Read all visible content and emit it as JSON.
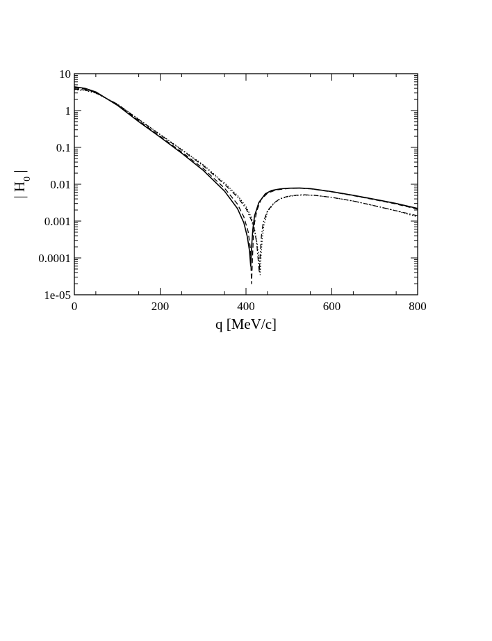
{
  "chart_data": {
    "type": "line",
    "title": "",
    "xlabel": "q [MeV/c]",
    "ylabel": "| H",
    "ylabel_subscript": "0",
    "ylabel_suffix": " |",
    "xlim": [
      0,
      800
    ],
    "ylim": [
      1e-05,
      10
    ],
    "yscale": "log",
    "grid": false,
    "legend": "none",
    "x_ticks": [
      0,
      200,
      400,
      600,
      800
    ],
    "x_tick_labels": [
      "0",
      "200",
      "400",
      "600",
      "800"
    ],
    "y_ticks": [
      1e-05,
      0.0001,
      0.001,
      0.01,
      0.1,
      1,
      10
    ],
    "y_tick_labels": [
      "1e-05",
      "0.0001",
      "0.001",
      "0.01",
      "0.1",
      "1",
      "10"
    ],
    "series": [
      {
        "style": "solid",
        "color": "#000000",
        "x": [
          0,
          25,
          50,
          100,
          150,
          200,
          250,
          300,
          350,
          380,
          395,
          403,
          408,
          411,
          413,
          416,
          420,
          430,
          445,
          460,
          480,
          500,
          525,
          550,
          600,
          650,
          700,
          750,
          800
        ],
        "y": [
          4.4,
          4.0,
          3.2,
          1.4,
          0.5,
          0.19,
          0.07,
          0.024,
          0.0065,
          0.0022,
          0.0009,
          0.00038,
          0.00016,
          6e-05,
          0.0002,
          0.0006,
          0.0014,
          0.0032,
          0.0055,
          0.0068,
          0.0075,
          0.0078,
          0.0079,
          0.0076,
          0.0063,
          0.005,
          0.0039,
          0.003,
          0.0022
        ]
      },
      {
        "style": "dashed",
        "color": "#000000",
        "x": [
          0,
          25,
          50,
          100,
          150,
          200,
          250,
          300,
          350,
          380,
          395,
          405,
          410,
          413,
          415,
          417,
          420,
          425,
          435,
          450,
          470,
          500,
          525,
          550,
          600,
          650,
          700,
          750,
          800
        ],
        "y": [
          4.1,
          3.8,
          3.1,
          1.45,
          0.53,
          0.2,
          0.075,
          0.027,
          0.0078,
          0.0029,
          0.0013,
          0.00052,
          0.00019,
          2e-05,
          9e-05,
          0.00035,
          0.0009,
          0.0019,
          0.0038,
          0.0057,
          0.007,
          0.0077,
          0.0078,
          0.0075,
          0.0062,
          0.0049,
          0.0038,
          0.0029,
          0.0021
        ]
      },
      {
        "style": "dash-dot",
        "color": "#000000",
        "x": [
          0,
          25,
          50,
          100,
          150,
          200,
          250,
          300,
          350,
          380,
          400,
          412,
          420,
          425,
          428,
          431,
          433,
          436,
          440,
          450,
          465,
          480,
          500,
          530,
          560,
          600,
          650,
          700,
          750,
          800
        ],
        "y": [
          3.8,
          3.6,
          3.0,
          1.5,
          0.57,
          0.22,
          0.085,
          0.032,
          0.01,
          0.0045,
          0.0022,
          0.0011,
          0.00055,
          0.00025,
          0.0001,
          4e-05,
          0.00012,
          0.0004,
          0.0009,
          0.0019,
          0.0031,
          0.0041,
          0.0048,
          0.0052,
          0.005,
          0.0044,
          0.0035,
          0.0026,
          0.0019,
          0.0014
        ]
      },
      {
        "style": "dotted",
        "color": "#000000",
        "x": [
          0,
          25,
          50,
          100,
          150,
          200,
          250,
          300,
          350,
          380,
          400,
          412,
          420,
          426,
          430,
          433,
          435,
          438,
          442,
          450,
          465,
          480,
          500,
          530,
          560,
          600,
          650,
          700,
          750,
          800
        ],
        "y": [
          3.7,
          3.5,
          2.95,
          1.5,
          0.58,
          0.225,
          0.088,
          0.034,
          0.0108,
          0.005,
          0.0025,
          0.0013,
          0.0006,
          0.00024,
          0.0001,
          3.5e-05,
          0.00011,
          0.00035,
          0.0008,
          0.0018,
          0.003,
          0.004,
          0.0047,
          0.0051,
          0.005,
          0.0044,
          0.0035,
          0.0026,
          0.0019,
          0.0013
        ]
      }
    ]
  }
}
